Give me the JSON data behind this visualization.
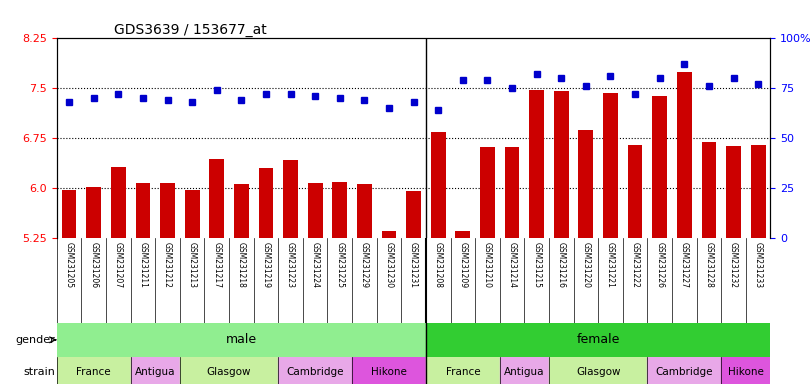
{
  "title": "GDS3639 / 153677_at",
  "samples": [
    "GSM231205",
    "GSM231206",
    "GSM231207",
    "GSM231211",
    "GSM231212",
    "GSM231213",
    "GSM231217",
    "GSM231218",
    "GSM231219",
    "GSM231223",
    "GSM231224",
    "GSM231225",
    "GSM231229",
    "GSM231230",
    "GSM231231",
    "GSM231208",
    "GSM231209",
    "GSM231210",
    "GSM231214",
    "GSM231215",
    "GSM231216",
    "GSM231220",
    "GSM231221",
    "GSM231222",
    "GSM231226",
    "GSM231227",
    "GSM231228",
    "GSM231232",
    "GSM231233"
  ],
  "bar_values": [
    5.97,
    6.01,
    6.32,
    6.08,
    6.08,
    5.97,
    6.44,
    6.07,
    6.3,
    6.42,
    6.08,
    6.09,
    6.06,
    5.36,
    5.95,
    6.85,
    5.36,
    6.62,
    6.62,
    7.48,
    7.46,
    6.87,
    7.43,
    6.65,
    7.38,
    7.75,
    6.7,
    6.63,
    6.65
  ],
  "percentile_values": [
    68,
    70,
    72,
    70,
    69,
    68,
    74,
    69,
    72,
    72,
    71,
    70,
    69,
    65,
    68,
    64,
    79,
    79,
    75,
    82,
    80,
    76,
    81,
    72,
    80,
    87,
    76,
    80,
    77
  ],
  "gender": [
    "male",
    "male",
    "male",
    "male",
    "male",
    "male",
    "male",
    "male",
    "male",
    "male",
    "male",
    "male",
    "male",
    "male",
    "male",
    "female",
    "female",
    "female",
    "female",
    "female",
    "female",
    "female",
    "female",
    "female",
    "female",
    "female",
    "female",
    "female",
    "female"
  ],
  "strain_labels": [
    "France",
    "Antigua",
    "Glasgow",
    "Cambridge",
    "Hikone",
    "France",
    "Antigua",
    "Glasgow",
    "Cambridge",
    "Hikone"
  ],
  "strain_bounds_male": [
    0,
    3,
    5,
    9,
    12,
    15
  ],
  "strain_bounds_female": [
    15,
    18,
    20,
    24,
    27,
    29
  ],
  "strain_male_colors": [
    "#d8f0c0",
    "#e8a8e8",
    "#d8f0c0",
    "#e8a8e8",
    "#e8a8e8"
  ],
  "strain_female_colors": [
    "#d8f0c0",
    "#e8a8e8",
    "#d8f0c0",
    "#e8a8e8",
    "#e8a8e8"
  ],
  "ylim_left": [
    5.25,
    8.25
  ],
  "ylim_right": [
    0,
    100
  ],
  "yticks_left": [
    5.25,
    6.0,
    6.75,
    7.5,
    8.25
  ],
  "yticks_right": [
    0,
    25,
    50,
    75,
    100
  ],
  "ytick_labels_right": [
    "0",
    "25",
    "50",
    "75",
    "100%"
  ],
  "bar_color": "#cc0000",
  "dot_color": "#0000cc",
  "bg_color": "#ffffff",
  "tick_area_color": "#c8c8c8",
  "male_gender_color": "#90ee90",
  "female_gender_color": "#32cd32",
  "strain_colors": [
    "#d8f0c0",
    "#e8a8e8",
    "#d8f0c0",
    "#e8a8e8",
    "#e060e0"
  ],
  "strain_colors_alt": [
    "#c8f0a8",
    "#e8a8e8",
    "#c8f0a8",
    "#e8a8e8",
    "#e060e0"
  ]
}
